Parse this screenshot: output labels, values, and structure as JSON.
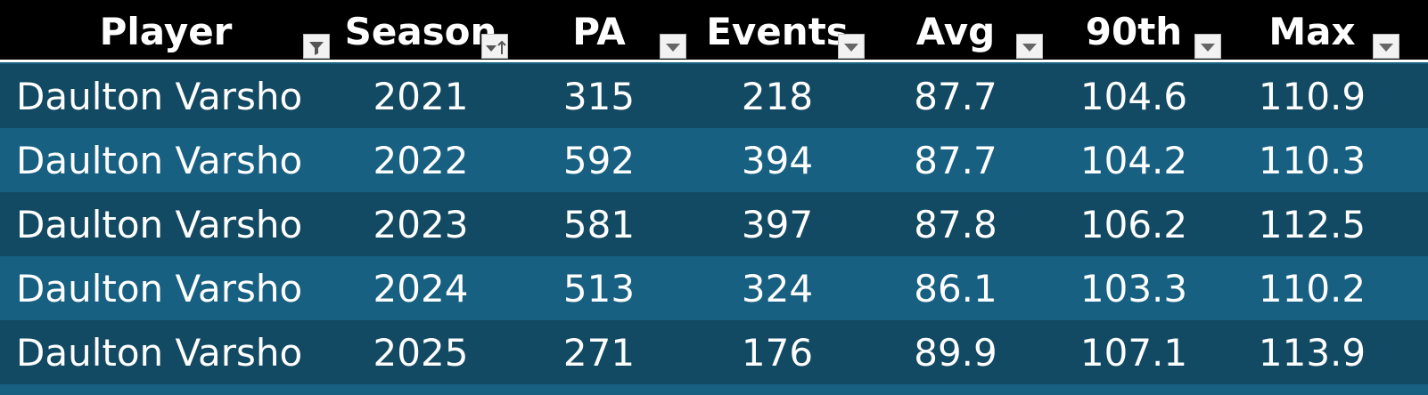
{
  "table": {
    "header": [
      "Player",
      "Season",
      "PA",
      "Events",
      "Avg",
      "90th",
      "Max"
    ],
    "rows": [
      [
        "Daulton Varsho",
        2021,
        315,
        218,
        87.7,
        104.6,
        110.9
      ],
      [
        "Daulton Varsho",
        2022,
        592,
        394,
        87.7,
        104.2,
        110.3
      ],
      [
        "Daulton Varsho",
        2023,
        581,
        397,
        87.8,
        106.2,
        112.5
      ],
      [
        "Daulton Varsho",
        2024,
        513,
        324,
        86.1,
        103.3,
        110.2
      ],
      [
        "Daulton Varsho",
        2025,
        271,
        176,
        89.9,
        107.1,
        113.9
      ]
    ]
  }
}
